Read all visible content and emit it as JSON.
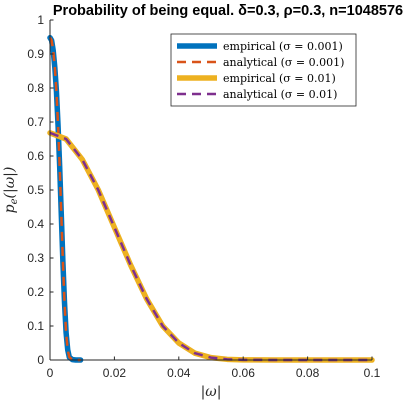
{
  "chart_data": {
    "type": "line",
    "title": "Probability of being equal. δ=0.3, ρ=0.3, n=1048576",
    "xlabel": "|ω|",
    "ylabel": "p_e(|ω|)",
    "xlim": [
      0,
      0.1
    ],
    "ylim": [
      0,
      1
    ],
    "xticks": [
      0,
      0.02,
      0.04,
      0.06,
      0.08,
      0.1
    ],
    "xtick_labels": [
      "0",
      "0.02",
      "0.04",
      "0.06",
      "0.08",
      "0.1"
    ],
    "yticks": [
      0,
      0.1,
      0.2,
      0.3,
      0.4,
      0.5,
      0.6,
      0.7,
      0.8,
      0.9,
      1
    ],
    "ytick_labels": [
      "0",
      "0.1",
      "0.2",
      "0.3",
      "0.4",
      "0.5",
      "0.6",
      "0.7",
      "0.8",
      "0.9",
      "1"
    ],
    "grid": false,
    "legend_position": "top-right",
    "series": [
      {
        "name": "empirical (σ = 0.001)",
        "color": "#0072BD",
        "style": "solid-thick",
        "x": [
          0,
          0.0005,
          0.001,
          0.0015,
          0.002,
          0.0025,
          0.003,
          0.0035,
          0.004,
          0.0045,
          0.005,
          0.0055,
          0.006,
          0.007,
          0.008,
          0.009,
          0.0095
        ],
        "y": [
          0.948,
          0.94,
          0.91,
          0.86,
          0.79,
          0.69,
          0.57,
          0.43,
          0.29,
          0.17,
          0.08,
          0.03,
          0.008,
          0.001,
          0,
          0,
          0
        ]
      },
      {
        "name": "analytical (σ = 0.001)",
        "color": "#D95319",
        "style": "dashed",
        "x": [
          0,
          0.0005,
          0.001,
          0.0015,
          0.002,
          0.0025,
          0.003,
          0.0035,
          0.004,
          0.0045,
          0.005,
          0.0055,
          0.006,
          0.007,
          0.008,
          0.009,
          0.0095
        ],
        "y": [
          0.948,
          0.94,
          0.91,
          0.86,
          0.79,
          0.69,
          0.57,
          0.43,
          0.29,
          0.17,
          0.08,
          0.03,
          0.008,
          0.001,
          0,
          0,
          0
        ]
      },
      {
        "name": "empirical (σ = 0.01)",
        "color": "#EDB120",
        "style": "solid-thick",
        "x": [
          0,
          0.005,
          0.01,
          0.015,
          0.02,
          0.025,
          0.03,
          0.035,
          0.04,
          0.045,
          0.05,
          0.055,
          0.06,
          0.07,
          0.08,
          0.09,
          0.1
        ],
        "y": [
          0.668,
          0.65,
          0.59,
          0.5,
          0.39,
          0.28,
          0.18,
          0.1,
          0.05,
          0.02,
          0.007,
          0.002,
          0.0005,
          0,
          0,
          0,
          0
        ]
      },
      {
        "name": "analytical (σ = 0.01)",
        "color": "#7E2F8E",
        "style": "dashed",
        "x": [
          0,
          0.005,
          0.01,
          0.015,
          0.02,
          0.025,
          0.03,
          0.035,
          0.04,
          0.045,
          0.05,
          0.055,
          0.06,
          0.07,
          0.08,
          0.09,
          0.1
        ],
        "y": [
          0.668,
          0.65,
          0.59,
          0.5,
          0.39,
          0.28,
          0.18,
          0.1,
          0.05,
          0.02,
          0.007,
          0.002,
          0.0005,
          0,
          0,
          0,
          0
        ]
      }
    ]
  }
}
